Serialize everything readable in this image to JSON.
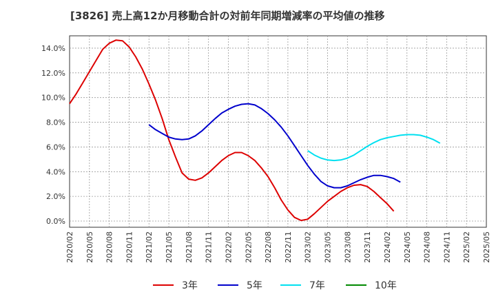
{
  "chart_data": {
    "type": "line",
    "title": "[3826]  売上高12か月移動合計の対前年同期増減率の平均値の推移",
    "xlabel": "",
    "ylabel": "",
    "ylim": [
      -0.5,
      15.0
    ],
    "y_ticks": [
      "0.0%",
      "2.0%",
      "4.0%",
      "6.0%",
      "8.0%",
      "10.0%",
      "12.0%",
      "14.0%"
    ],
    "x_tick_labels": [
      "2020/02",
      "2020/05",
      "2020/08",
      "2020/11",
      "2021/02",
      "2021/05",
      "2021/08",
      "2021/11",
      "2022/02",
      "2022/05",
      "2022/08",
      "2022/11",
      "2023/02",
      "2023/05",
      "2023/08",
      "2023/11",
      "2024/02",
      "2024/05",
      "2024/08",
      "2024/11",
      "2025/02",
      "2025/05"
    ],
    "grid": true,
    "legend_position": "bottom",
    "series": [
      {
        "name": "3年",
        "color": "#dd0000",
        "start_index": 0,
        "values": [
          9.5,
          10.3,
          11.2,
          12.1,
          13.0,
          13.9,
          14.4,
          14.65,
          14.6,
          14.1,
          13.3,
          12.3,
          11.1,
          9.8,
          8.3,
          6.6,
          5.2,
          3.9,
          3.4,
          3.3,
          3.5,
          3.9,
          4.4,
          4.9,
          5.3,
          5.55,
          5.55,
          5.3,
          4.9,
          4.3,
          3.6,
          2.7,
          1.7,
          0.9,
          0.3,
          0.05,
          0.15,
          0.6,
          1.1,
          1.6,
          2.0,
          2.4,
          2.7,
          2.9,
          2.95,
          2.8,
          2.4,
          1.9,
          1.4,
          0.8
        ]
      },
      {
        "name": "5年",
        "color": "#0000cc",
        "start_index": 12,
        "values": [
          7.8,
          7.4,
          7.1,
          6.8,
          6.65,
          6.6,
          6.65,
          6.9,
          7.3,
          7.8,
          8.3,
          8.75,
          9.05,
          9.3,
          9.45,
          9.5,
          9.4,
          9.1,
          8.7,
          8.2,
          7.6,
          6.9,
          6.1,
          5.3,
          4.5,
          3.8,
          3.2,
          2.85,
          2.7,
          2.7,
          2.85,
          3.1,
          3.35,
          3.55,
          3.7,
          3.7,
          3.6,
          3.45,
          3.15
        ]
      },
      {
        "name": "7年",
        "color": "#00e0f0",
        "start_index": 36,
        "values": [
          5.7,
          5.35,
          5.1,
          4.95,
          4.9,
          4.95,
          5.1,
          5.35,
          5.7,
          6.05,
          6.35,
          6.6,
          6.75,
          6.85,
          6.95,
          7.0,
          7.0,
          6.95,
          6.8,
          6.6,
          6.3
        ]
      },
      {
        "name": "10年",
        "color": "#008800",
        "start_index": 0,
        "values": []
      }
    ]
  }
}
